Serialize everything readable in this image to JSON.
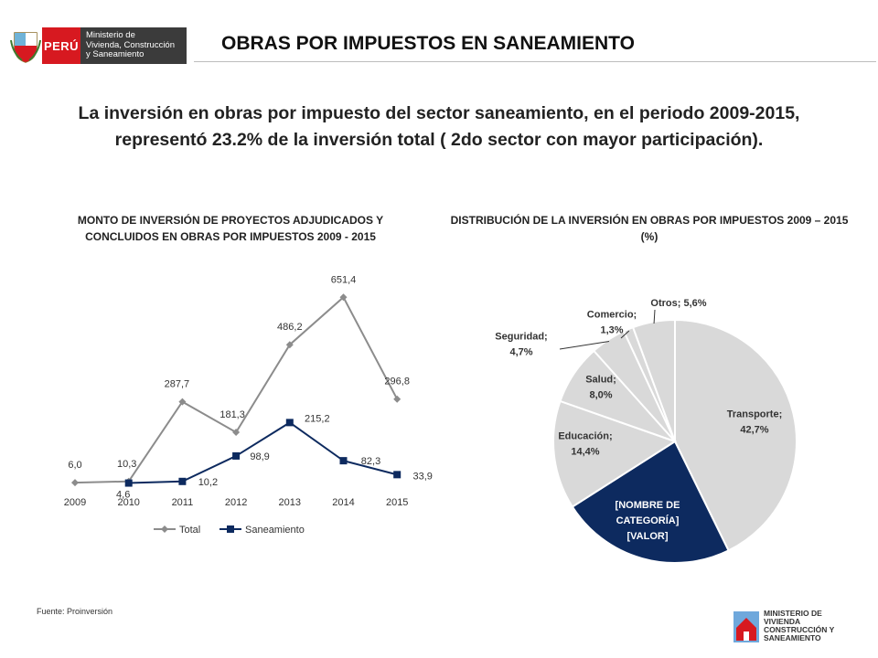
{
  "header": {
    "logo_country": "PERÚ",
    "logo_ministry_lines": [
      "Ministerio de",
      "Vivienda, Construcción",
      "y Saneamiento"
    ]
  },
  "title": "OBRAS POR IMPUESTOS EN SANEAMIENTO",
  "intro": "La inversión en obras por impuesto del sector saneamiento, en el periodo 2009-2015, representó  23.2% de la inversión total ( 2do sector con mayor participación).",
  "source": "Fuente: Proinversión",
  "footer_logo_lines": [
    "MINISTERIO DE",
    "VIVIENDA",
    "CONSTRUCCIÓN Y",
    "SANEAMIENTO"
  ],
  "colors": {
    "total": "#8c8c8c",
    "saneamiento": "#0d2a5f",
    "pie_grey": "#d9d9d9",
    "pie_highlight": "#0d2a5f",
    "brand_red": "#d71920"
  },
  "chart_data": [
    {
      "type": "line",
      "title": "MONTO DE INVERSIÓN DE PROYECTOS ADJUDICADOS Y CONCLUIDOS EN OBRAS POR IMPUESTOS 2009 - 2015",
      "categories": [
        "2009",
        "2010",
        "2011",
        "2012",
        "2013",
        "2014",
        "2015"
      ],
      "series": [
        {
          "name": "Total",
          "values": [
            6.0,
            10.3,
            287.7,
            181.3,
            486.2,
            651.4,
            296.8
          ],
          "labels": [
            "6,0",
            "10,3",
            "287,7",
            "181,3",
            "486,2",
            "651,4",
            "296,8"
          ]
        },
        {
          "name": "Saneamiento",
          "values": [
            null,
            4.6,
            10.2,
            98.9,
            215.2,
            82.3,
            33.9
          ],
          "labels": [
            "",
            "4,6",
            "10,2",
            "98,9",
            "215,2",
            "82,3",
            "33,9"
          ]
        }
      ],
      "ylim": [
        0,
        700
      ],
      "grid": false,
      "legend": "bottom"
    },
    {
      "type": "pie",
      "title": "DISTRIBUCIÓN DE LA INVERSIÓN EN OBRAS POR IMPUESTOS 2009 – 2015 (%)",
      "slices": [
        {
          "label": "Transporte",
          "value": 42.7,
          "text": [
            "Transporte;",
            "42,7%"
          ],
          "highlight": false
        },
        {
          "label": "[NOMBRE DE CATEGORÍA]",
          "value": 23.2,
          "text": [
            "[NOMBRE DE",
            "CATEGORÍA]",
            "[VALOR]"
          ],
          "highlight": true
        },
        {
          "label": "Educación",
          "value": 14.4,
          "text": [
            "Educación;",
            "14,4%"
          ],
          "highlight": false
        },
        {
          "label": "Salud",
          "value": 8.0,
          "text": [
            "Salud;",
            "8,0%"
          ],
          "highlight": false
        },
        {
          "label": "Seguridad",
          "value": 4.7,
          "text": [
            "Seguridad;",
            "4,7%"
          ],
          "highlight": false
        },
        {
          "label": "Comercio",
          "value": 1.3,
          "text": [
            "Comercio;",
            "1,3%"
          ],
          "highlight": false
        },
        {
          "label": "Otros",
          "value": 5.6,
          "text": [
            "Otros; 5,6%"
          ],
          "highlight": false
        }
      ]
    }
  ]
}
